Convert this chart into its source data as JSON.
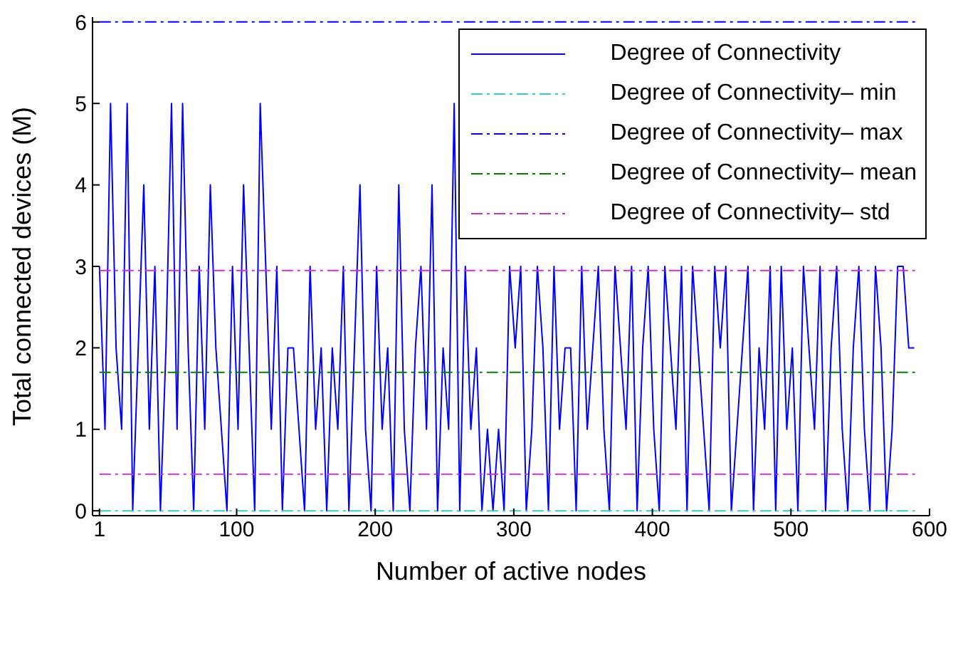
{
  "chart_data": {
    "type": "line",
    "xlabel": "Number of active nodes",
    "ylabel": "Total connected devices (M)",
    "xlim": [
      -4,
      600
    ],
    "ylim": [
      -0.06,
      6.06
    ],
    "xticks": [
      {
        "value": 1,
        "label": "1"
      },
      100,
      200,
      300,
      400,
      500,
      600
    ],
    "yticks": [
      0,
      1,
      2,
      3,
      4,
      5,
      6
    ],
    "legend": "top right",
    "series": [
      {
        "name": "Degree of Connectivity",
        "color": "#0000ff",
        "line_style": "solid",
        "x": [
          1,
          5,
          9,
          13,
          17,
          21,
          25,
          29,
          33,
          37,
          41,
          45,
          49,
          53,
          57,
          61,
          65,
          69,
          73,
          77,
          81,
          85,
          89,
          93,
          97,
          101,
          105,
          109,
          113,
          117,
          121,
          125,
          129,
          133,
          137,
          141,
          145,
          149,
          153,
          157,
          161,
          165,
          169,
          173,
          177,
          181,
          185,
          189,
          193,
          197,
          201,
          205,
          209,
          213,
          217,
          221,
          225,
          229,
          233,
          237,
          241,
          245,
          249,
          253,
          257,
          261,
          265,
          269,
          273,
          277,
          281,
          285,
          289,
          293,
          297,
          301,
          305,
          309,
          313,
          317,
          321,
          325,
          329,
          333,
          337,
          341,
          345,
          349,
          353,
          357,
          361,
          365,
          369,
          373,
          377,
          381,
          385,
          389,
          393,
          397,
          401,
          405,
          409,
          413,
          417,
          421,
          425,
          429,
          433,
          437,
          441,
          445,
          449,
          453,
          457,
          461,
          465,
          469,
          473,
          477,
          481,
          485,
          489,
          493,
          497,
          501,
          505,
          509,
          513,
          517,
          521,
          525,
          529,
          533,
          537,
          541,
          545,
          549,
          553,
          557,
          561,
          565,
          569,
          573,
          577,
          581,
          585,
          589
        ],
        "values": [
          3,
          1,
          5,
          2,
          1,
          5,
          0,
          2,
          4,
          1,
          3,
          0,
          2,
          5,
          1,
          5,
          2,
          0,
          3,
          1,
          4,
          2,
          1,
          0,
          3,
          1,
          4,
          2,
          0,
          5,
          3,
          1,
          3,
          0,
          2,
          2,
          1,
          0,
          3,
          1,
          2,
          0,
          2,
          1,
          3,
          0,
          2,
          4,
          1,
          0,
          3,
          1,
          2,
          0,
          4,
          1,
          0,
          2,
          3,
          1,
          4,
          0,
          2,
          1,
          5,
          0,
          3,
          1,
          2,
          0,
          1,
          0,
          1,
          0,
          3,
          2,
          3,
          0,
          1,
          3,
          2,
          0,
          3,
          1,
          2,
          2,
          0,
          3,
          1,
          2,
          3,
          1,
          0,
          3,
          2,
          1,
          3,
          0,
          2,
          3,
          1,
          0,
          3,
          2,
          1,
          3,
          0,
          3,
          2,
          1,
          0,
          3,
          2,
          3,
          0,
          1,
          2,
          3,
          0,
          2,
          1,
          3,
          0,
          3,
          1,
          2,
          0,
          3,
          2,
          1,
          3,
          0,
          2,
          3,
          1,
          0,
          2,
          3,
          1,
          0,
          3,
          2,
          0,
          1,
          3,
          3,
          2,
          2
        ]
      },
      {
        "name": "Degree of Connectivity– min",
        "color": "#33cccc",
        "line_style": "dashed",
        "x": [
          1,
          590
        ],
        "values": [
          0,
          0
        ]
      },
      {
        "name": "Degree of Connectivity– max",
        "color": "#0000ff",
        "line_style": "dashed",
        "x": [
          1,
          590
        ],
        "values": [
          6,
          6
        ]
      },
      {
        "name": "Degree of Connectivity– mean",
        "color": "#008000",
        "line_style": "dashed",
        "x": [
          1,
          590
        ],
        "values": [
          1.7,
          1.7
        ]
      },
      {
        "name": "Degree of Connectivity– std",
        "color": "#cc33cc",
        "line_style": "dashed",
        "x": [
          1,
          590
        ],
        "values": [
          2.95,
          2.95
        ]
      },
      {
        "color": "#cc33cc",
        "line_style": "dashed",
        "x": [
          1,
          590
        ],
        "values": [
          0.45,
          0.45
        ]
      }
    ]
  }
}
